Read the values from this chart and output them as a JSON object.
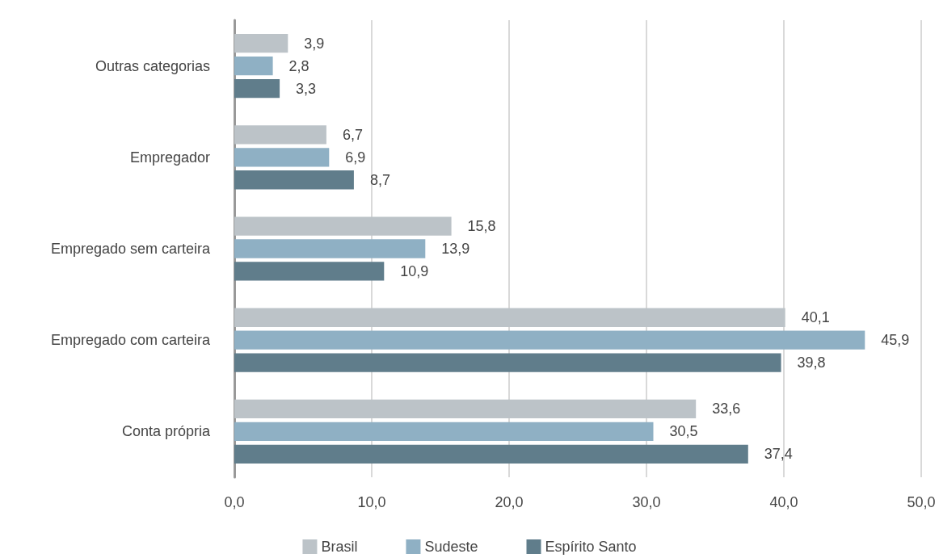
{
  "chart_data": {
    "type": "bar",
    "orientation": "horizontal",
    "categories": [
      "Outras categorias",
      "Empregador",
      "Empregado sem carteira",
      "Empregado com carteira",
      "Conta própria"
    ],
    "series": [
      {
        "name": "Brasil",
        "color": "#bcc3c8",
        "values": [
          3.9,
          6.7,
          15.8,
          40.1,
          33.6
        ],
        "value_labels": [
          "3,9",
          "6,7",
          "15,8",
          "40,1",
          "33,6"
        ]
      },
      {
        "name": "Sudeste",
        "color": "#8fb0c4",
        "values": [
          2.8,
          6.9,
          13.9,
          45.9,
          30.5
        ],
        "value_labels": [
          "2,8",
          "6,9",
          "13,9",
          "45,9",
          "30,5"
        ]
      },
      {
        "name": "Espírito Santo",
        "color": "#607d8b",
        "values": [
          3.3,
          8.7,
          10.9,
          39.8,
          37.4
        ],
        "value_labels": [
          "3,3",
          "8,7",
          "10,9",
          "39,8",
          "37,4"
        ]
      }
    ],
    "xlim": [
      0,
      50
    ],
    "xticks": [
      {
        "value": 0,
        "label": "0,0"
      },
      {
        "value": 10,
        "label": "10,0"
      },
      {
        "value": 20,
        "label": "20,0"
      },
      {
        "value": 30,
        "label": "30,0"
      },
      {
        "value": 40,
        "label": "40,0"
      },
      {
        "value": 50,
        "label": "50,0"
      }
    ],
    "grid": "x",
    "legend": "bottom"
  }
}
